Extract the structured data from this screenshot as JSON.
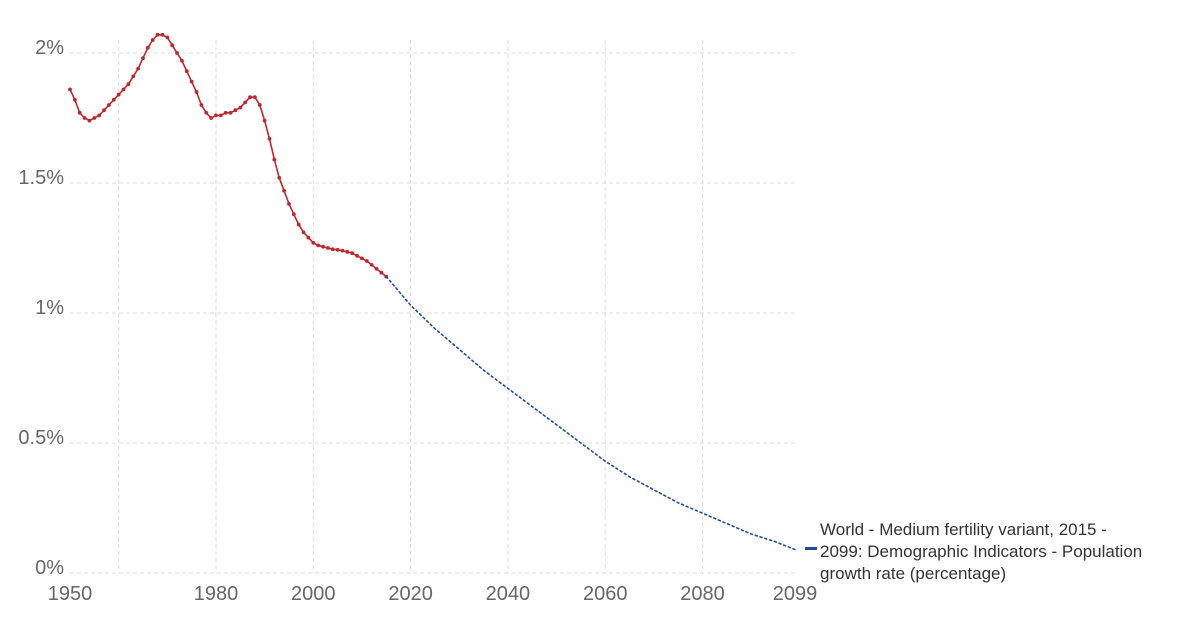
{
  "chart_data": {
    "type": "line",
    "xlim": [
      1950,
      2099
    ],
    "ylim": [
      0,
      2.1
    ],
    "y_ticks": [
      {
        "value": 0,
        "label": "0%"
      },
      {
        "value": 0.5,
        "label": "0.5%"
      },
      {
        "value": 1,
        "label": "1%"
      },
      {
        "value": 1.5,
        "label": "1.5%"
      },
      {
        "value": 2,
        "label": "2%"
      }
    ],
    "x_ticks": [
      {
        "value": 1950,
        "label": "1950"
      },
      {
        "value": 1980,
        "label": "1980"
      },
      {
        "value": 2000,
        "label": "2000"
      },
      {
        "value": 2020,
        "label": "2020"
      },
      {
        "value": 2040,
        "label": "2040"
      },
      {
        "value": 2060,
        "label": "2060"
      },
      {
        "value": 2080,
        "label": "2080"
      },
      {
        "value": 2099,
        "label": "2099"
      }
    ],
    "x_grid_extra": [
      1960
    ],
    "grid": true,
    "series": [
      {
        "style": "solid-markers",
        "color": "#c0262d",
        "x": [
          1950,
          1951,
          1952,
          1953,
          1954,
          1955,
          1956,
          1957,
          1958,
          1959,
          1960,
          1961,
          1962,
          1963,
          1964,
          1965,
          1966,
          1967,
          1968,
          1969,
          1970,
          1971,
          1972,
          1973,
          1974,
          1975,
          1976,
          1977,
          1978,
          1979,
          1980,
          1981,
          1982,
          1983,
          1984,
          1985,
          1986,
          1987,
          1988,
          1989,
          1990,
          1991,
          1992,
          1993,
          1994,
          1995,
          1996,
          1997,
          1998,
          1999,
          2000,
          2001,
          2002,
          2003,
          2004,
          2005,
          2006,
          2007,
          2008,
          2009,
          2010,
          2011,
          2012,
          2013,
          2014,
          2015
        ],
        "y": [
          1.86,
          1.82,
          1.77,
          1.75,
          1.74,
          1.75,
          1.76,
          1.78,
          1.8,
          1.82,
          1.84,
          1.86,
          1.88,
          1.91,
          1.94,
          1.98,
          2.02,
          2.05,
          2.07,
          2.07,
          2.06,
          2.03,
          2.0,
          1.97,
          1.93,
          1.89,
          1.85,
          1.8,
          1.77,
          1.75,
          1.76,
          1.76,
          1.77,
          1.77,
          1.78,
          1.79,
          1.81,
          1.83,
          1.83,
          1.8,
          1.74,
          1.67,
          1.59,
          1.52,
          1.47,
          1.42,
          1.38,
          1.34,
          1.31,
          1.29,
          1.27,
          1.26,
          1.255,
          1.25,
          1.245,
          1.243,
          1.24,
          1.235,
          1.23,
          1.22,
          1.21,
          1.2,
          1.185,
          1.17,
          1.155,
          1.14
        ]
      },
      {
        "name": "World - Medium fertility variant, 2015 - 2099: Demographic Indicators - Population growth rate (percentage)",
        "style": "dotted",
        "color": "#1f4e9c",
        "x": [
          2015,
          2020,
          2025,
          2030,
          2035,
          2040,
          2045,
          2050,
          2055,
          2060,
          2065,
          2070,
          2075,
          2080,
          2085,
          2090,
          2095,
          2099
        ],
        "y": [
          1.14,
          1.03,
          0.94,
          0.86,
          0.78,
          0.71,
          0.64,
          0.57,
          0.5,
          0.43,
          0.37,
          0.32,
          0.27,
          0.23,
          0.19,
          0.15,
          0.12,
          0.09
        ]
      }
    ],
    "legend": {
      "placement": "right",
      "lines": [
        "World - Medium fertility variant, 2015 -",
        "2099: Demographic Indicators - Population",
        "growth rate (percentage)"
      ]
    }
  }
}
